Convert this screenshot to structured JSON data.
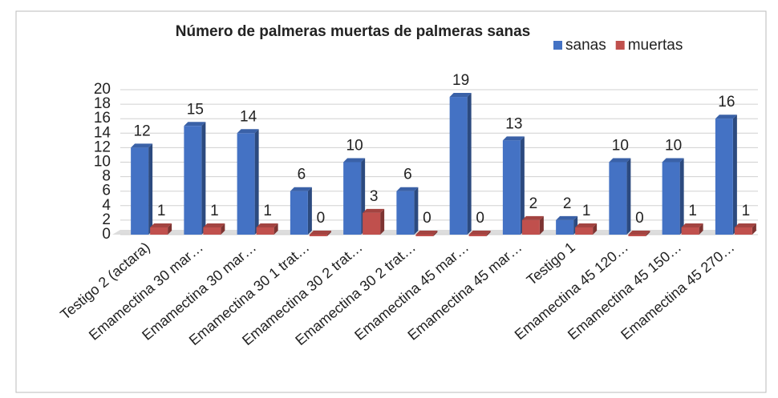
{
  "chart_data": {
    "type": "bar",
    "title": "Número de palmeras muertas de palmeras sanas",
    "categories": [
      "Testigo 2 (actara)",
      "Emamectina 30 mar…",
      "Emamectina 30 mar…",
      "Emamectina 30 1 trat…",
      "Emamectina 30 2 trat…",
      "Emamectina 30 2 trat…",
      "Emamectina 45 mar…",
      "Emamectina 45 mar…",
      "Testigo 1",
      "Emamectina 45 120…",
      "Emamectina 45 150…",
      "Emamectina 45 270…"
    ],
    "series": [
      {
        "name": "sanas",
        "color": "#4472c4",
        "values": [
          12,
          15,
          14,
          6,
          10,
          6,
          19,
          13,
          2,
          10,
          10,
          16
        ]
      },
      {
        "name": "muertas",
        "color": "#c0504d",
        "values": [
          1,
          1,
          1,
          0,
          3,
          0,
          0,
          2,
          1,
          0,
          1,
          1
        ]
      }
    ],
    "ylim": [
      0,
      20
    ],
    "yticks": [
      0,
      2,
      4,
      6,
      8,
      10,
      12,
      14,
      16,
      18,
      20
    ],
    "grid": true,
    "legend": "top-right"
  }
}
